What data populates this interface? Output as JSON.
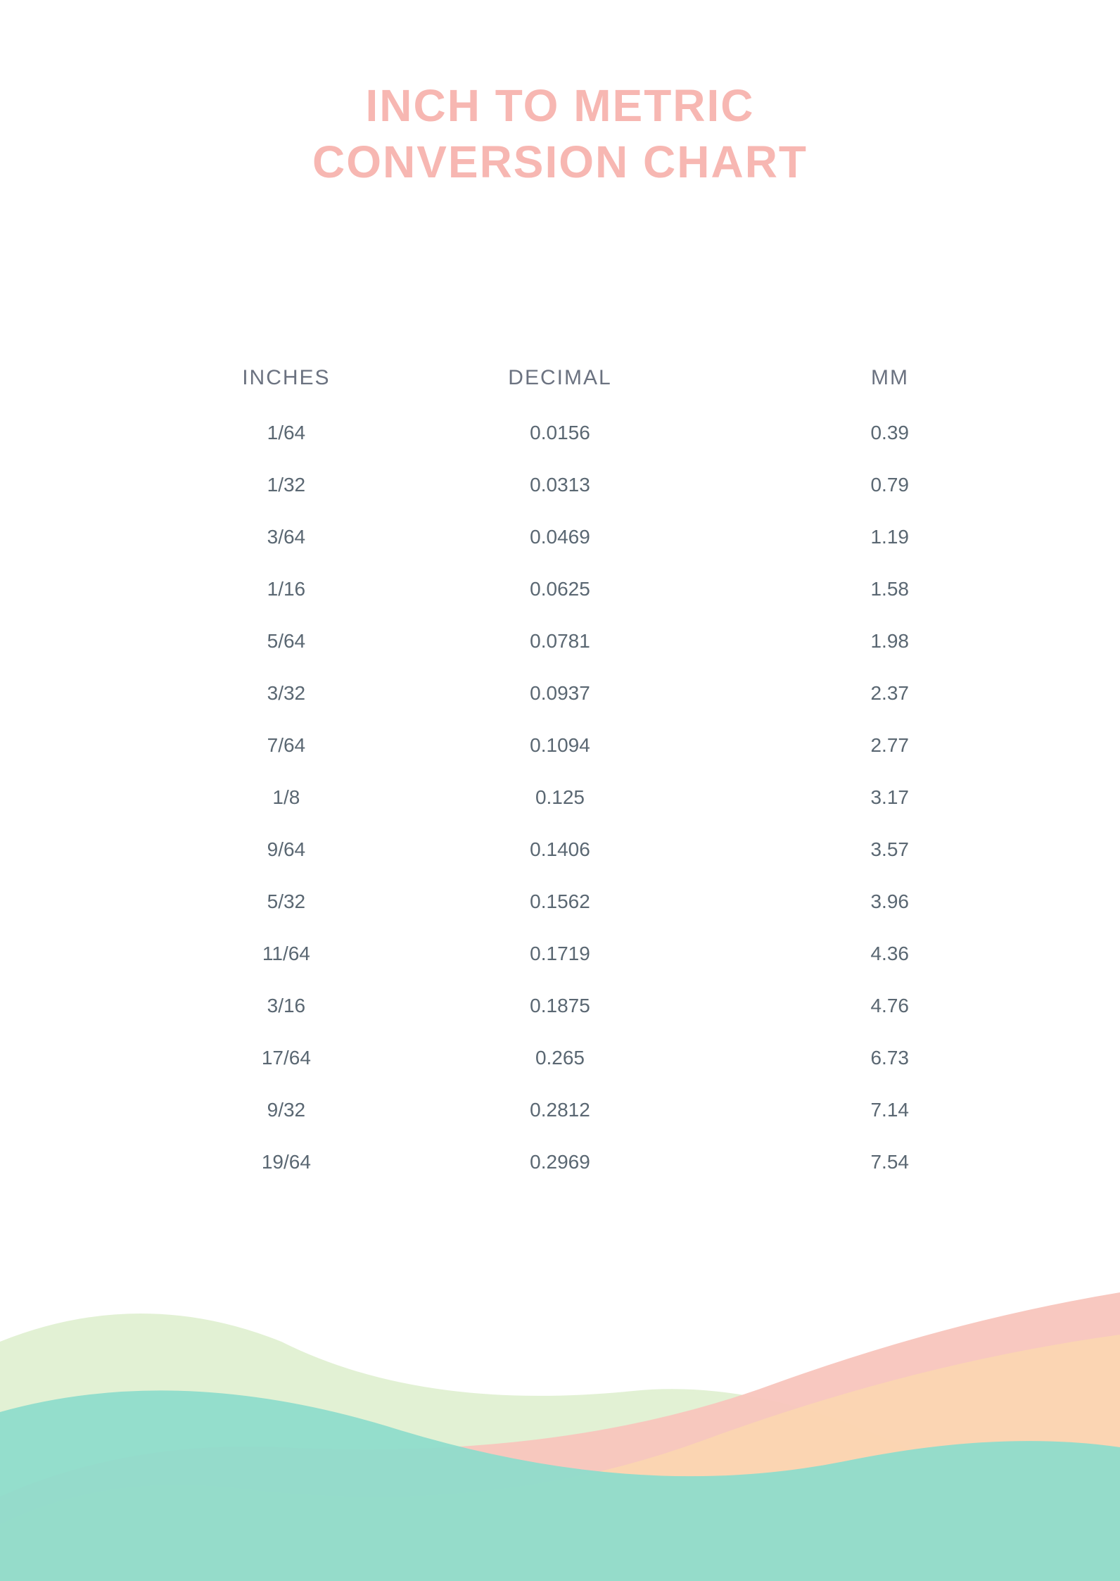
{
  "title": {
    "line1": "INCH TO METRIC",
    "line2": "CONVERSION CHART",
    "color": "#f7b7b2",
    "fontsize": 64
  },
  "table": {
    "type": "table",
    "header_color": "#6b7280",
    "body_color": "#5a6772",
    "columns": [
      "INCHES",
      "DECIMAL",
      "MM"
    ],
    "rows": [
      [
        "1/64",
        "0.0156",
        "0.39"
      ],
      [
        "1/32",
        "0.0313",
        "0.79"
      ],
      [
        "3/64",
        "0.0469",
        "1.19"
      ],
      [
        "1/16",
        "0.0625",
        "1.58"
      ],
      [
        "5/64",
        "0.0781",
        "1.98"
      ],
      [
        "3/32",
        "0.0937",
        "2.37"
      ],
      [
        "7/64",
        "0.1094",
        "2.77"
      ],
      [
        "1/8",
        "0.125",
        "3.17"
      ],
      [
        "9/64",
        "0.1406",
        "3.57"
      ],
      [
        "5/32",
        "0.1562",
        "3.96"
      ],
      [
        "11/64",
        "0.1719",
        "4.36"
      ],
      [
        "3/16",
        "0.1875",
        "4.76"
      ],
      [
        "17/64",
        "0.265",
        "6.73"
      ],
      [
        "9/32",
        "0.2812",
        "7.14"
      ],
      [
        "19/64",
        "0.2969",
        "7.54"
      ]
    ]
  },
  "waves": {
    "background_color": "#ffffff",
    "layers": [
      {
        "color": "#dff0cf",
        "opacity": 0.9
      },
      {
        "color": "#f8c5bd",
        "opacity": 0.95
      },
      {
        "color": "#fcd7b0",
        "opacity": 0.85
      },
      {
        "color": "#8fdccb",
        "opacity": 0.95
      }
    ]
  }
}
